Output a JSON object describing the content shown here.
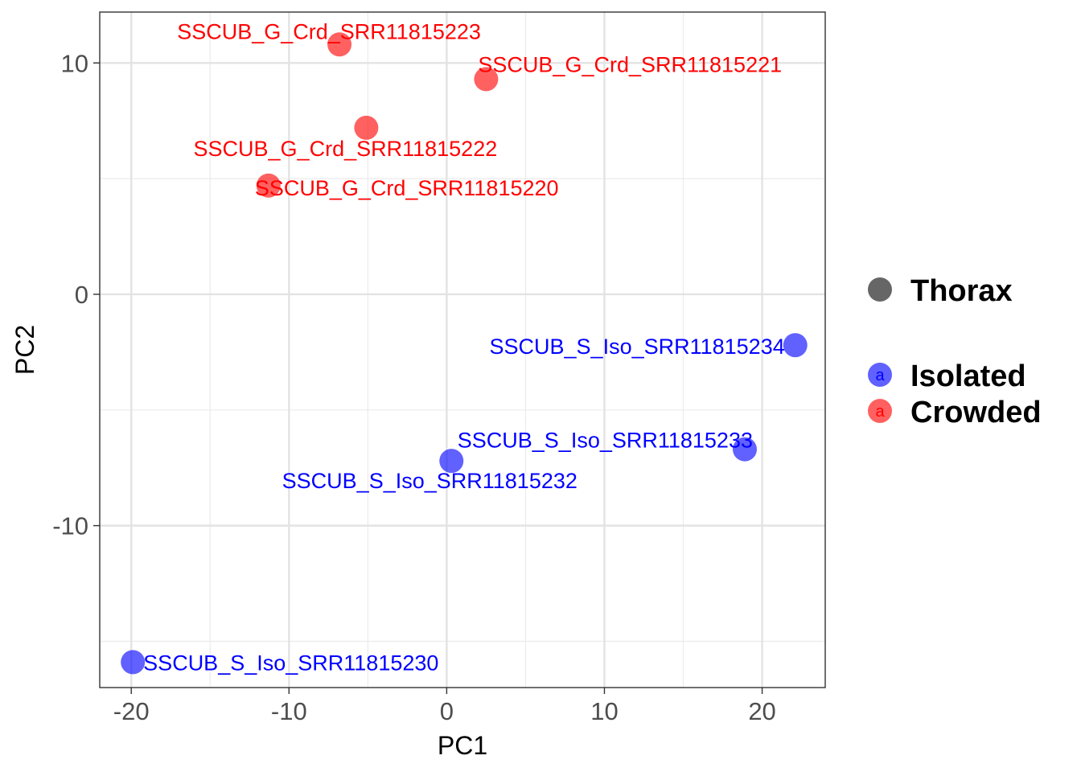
{
  "chart_data": {
    "type": "scatter",
    "xlabel": "PC1",
    "ylabel": "PC2",
    "xlim": [
      -22,
      24
    ],
    "ylim": [
      -17,
      12.2
    ],
    "x_ticks": [
      -20,
      -10,
      0,
      10,
      20
    ],
    "y_ticks": [
      -10,
      0,
      10
    ],
    "grid": true,
    "legend_placement": "right",
    "legend": {
      "shape_title": "Thorax",
      "entries": [
        {
          "name": "Isolated",
          "color": "#0000ff",
          "key_letter": "a"
        },
        {
          "name": "Crowded",
          "color": "#ff0000",
          "key_letter": "a"
        }
      ]
    },
    "points": [
      {
        "label": "SSCUB_G_Crd_SRR11815223",
        "x": -6.8,
        "y": 10.8,
        "group": "Crowded"
      },
      {
        "label": "SSCUB_G_Crd_SRR11815221",
        "x": 2.5,
        "y": 9.3,
        "group": "Crowded"
      },
      {
        "label": "SSCUB_G_Crd_SRR11815222",
        "x": -5.1,
        "y": 7.2,
        "group": "Crowded"
      },
      {
        "label": "SSCUB_G_Crd_SRR11815220",
        "x": -11.3,
        "y": 4.7,
        "group": "Crowded"
      },
      {
        "label": "SSCUB_S_Iso_SRR11815234",
        "x": 22.1,
        "y": -2.2,
        "group": "Isolated"
      },
      {
        "label": "SSCUB_S_Iso_SRR11815233",
        "x": 18.9,
        "y": -6.7,
        "group": "Isolated"
      },
      {
        "label": "SSCUB_S_Iso_SRR11815232",
        "x": 0.3,
        "y": -7.2,
        "group": "Isolated"
      },
      {
        "label": "SSCUB_S_Iso_SRR11815230",
        "x": -19.9,
        "y": -15.9,
        "group": "Isolated"
      }
    ]
  }
}
